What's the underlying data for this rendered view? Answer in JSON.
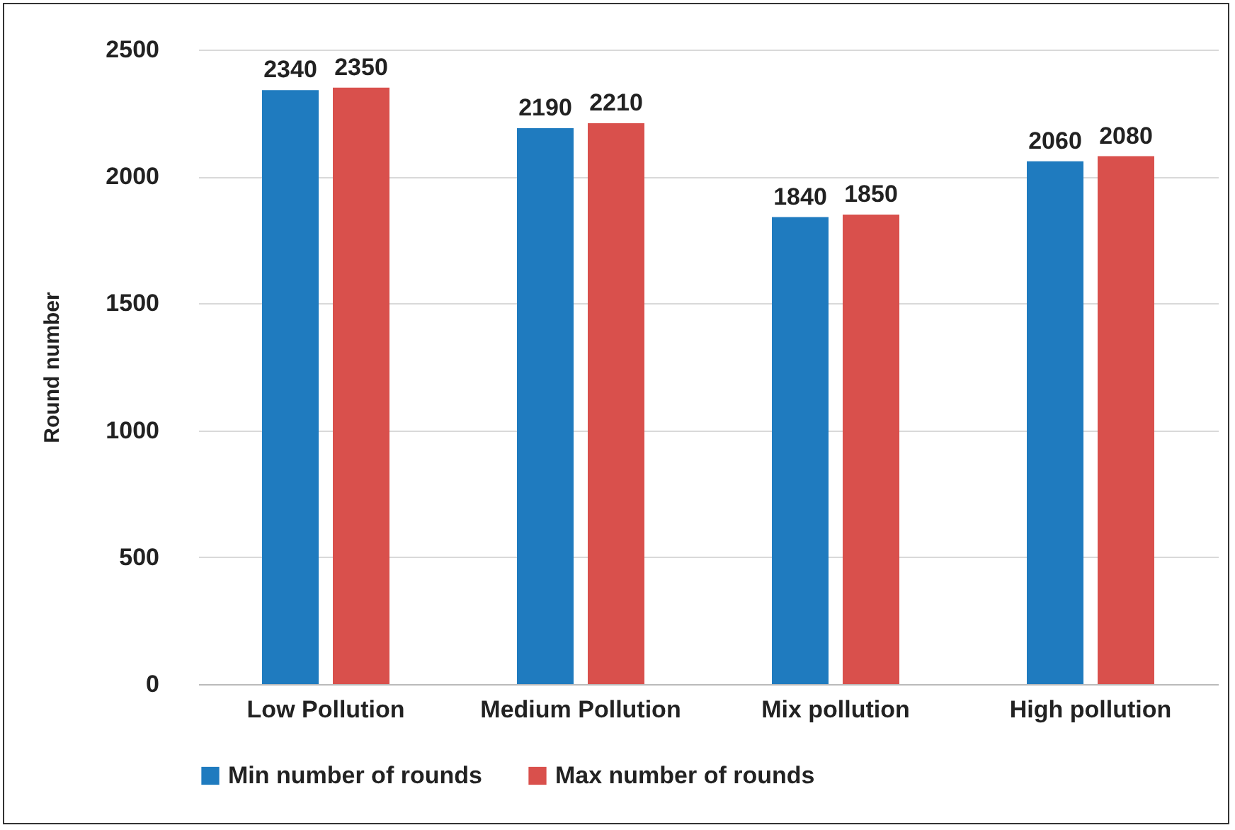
{
  "chart_data": {
    "type": "bar",
    "ylabel": "Round number",
    "categories": [
      "Low Pollution",
      "Medium Pollution",
      "Mix pollution",
      "High pollution"
    ],
    "series": [
      {
        "name": "Min number of rounds",
        "color": "#1f7bbf",
        "values": [
          2340,
          2190,
          1840,
          2060
        ]
      },
      {
        "name": "Max number of rounds",
        "color": "#d9504c",
        "values": [
          2350,
          2210,
          1850,
          2080
        ]
      }
    ],
    "ylim": [
      0,
      2500
    ],
    "yticks": [
      0,
      500,
      1000,
      1500,
      2000,
      2500
    ],
    "grid": "y",
    "legend": "bottom",
    "data_labels": true
  }
}
